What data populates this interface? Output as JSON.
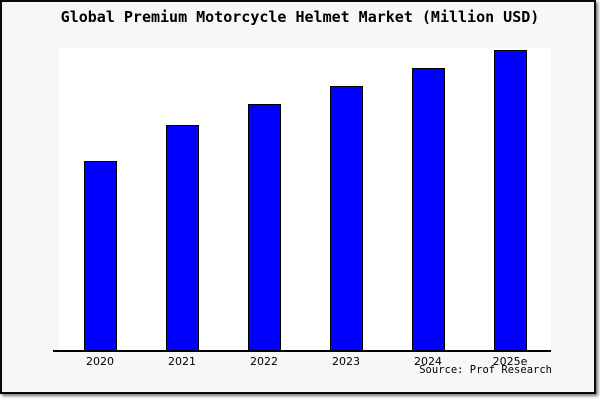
{
  "source": {
    "label": "Source: Prof Research"
  },
  "chart_data": {
    "type": "bar",
    "title": "Global Premium Motorcycle Helmet Market (Million USD)",
    "categories": [
      "2020",
      "2021",
      "2022",
      "2023",
      "2024",
      "2025e"
    ],
    "values": [
      63,
      75,
      82,
      88,
      94,
      100
    ],
    "values_note": "relative bar heights, no y-axis scale shown (2025e = 100)",
    "xlabel": "",
    "ylabel": "",
    "ylim": [
      0,
      101
    ],
    "grid": false,
    "legend": "none",
    "y_axis_visible": false,
    "bar_color": "#0000ff",
    "bar_border_color": "#000000",
    "figure_background": "#f7f7f7",
    "plot_background": "#ffffff",
    "frame_border_color": "#000000"
  }
}
